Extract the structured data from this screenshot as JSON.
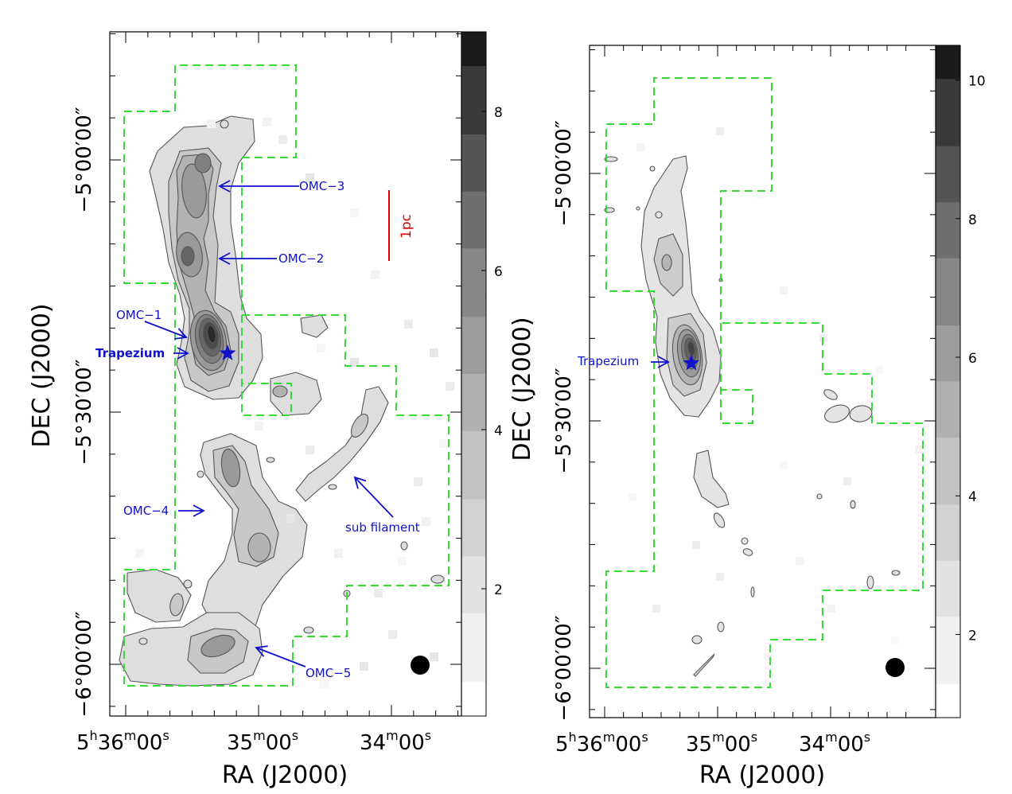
{
  "colors": {
    "grey_ramp": [
      "#ffffff",
      "#f0f0f0",
      "#e2e2e2",
      "#d2d2d2",
      "#c2c2c2",
      "#b0b0b0",
      "#9c9c9c",
      "#878787",
      "#6f6f6f",
      "#555555",
      "#3a3a3a",
      "#1a1a1a"
    ],
    "contour": "#555555",
    "survey_boundary": "#33dd33",
    "annotation": "#1111cc",
    "scale_bar": "#dd0000",
    "beam": "#000000"
  },
  "chart_data": [
    {
      "type": "heatmap",
      "panel": "left",
      "xlabel": "RA (J2000)",
      "ylabel": "DEC (J2000)",
      "x_ticks": [
        {
          "ra_s": 0,
          "label_h": "5",
          "label_m": "36",
          "label_s": "00",
          "show_hours": true
        },
        {
          "ra_s": -60,
          "label_m": "35",
          "label_s": "00",
          "show_hours": false
        },
        {
          "ra_s": -120,
          "label_m": "34",
          "label_s": "00",
          "show_hours": false
        }
      ],
      "y_ticks": [
        {
          "dec_min": 0,
          "label": "−5°00′00″"
        },
        {
          "dec_min": -30,
          "label": "−5°30′00″"
        },
        {
          "dec_min": -60,
          "label": "−6°00′00″"
        }
      ],
      "colorbar": {
        "ticks": [
          2,
          4,
          6,
          8
        ],
        "range": [
          0.4,
          9.0
        ]
      },
      "annotations": [
        {
          "label": "OMC−3",
          "text_ra": -99,
          "text_dec": -3,
          "tip_ra": -59,
          "tip_dec": -3
        },
        {
          "label": "OMC−2",
          "text_ra": -91,
          "text_dec": -11.5,
          "tip_ra": -59,
          "tip_dec": -11.5
        },
        {
          "label": "OMC−1",
          "text_ra": -44,
          "text_dec": -18.8,
          "tip_ra": -54,
          "tip_dec": -20.7
        },
        {
          "label": "Trapezium",
          "text_ra": -28,
          "text_dec": -22.9,
          "tip_ra": -54,
          "tip_dec": -22.9
        },
        {
          "label": "OMC−4",
          "text_ra": -25,
          "text_dec": -41.2,
          "tip_ra": -41,
          "tip_dec": -41.2
        },
        {
          "label": "sub filament",
          "text_ra": -126,
          "text_dec": -43,
          "tip_ra": -114,
          "tip_dec": -37.4
        },
        {
          "label": "OMC−5",
          "text_ra": -113,
          "text_dec": -60.8,
          "tip_ra": -65,
          "tip_dec": -58.5
        }
      ],
      "trapezium": {
        "ra": -46.0,
        "dec": -23.0
      },
      "scale_bar": {
        "label": "1pc"
      },
      "beam_position": "bottom-right"
    },
    {
      "type": "heatmap",
      "panel": "right",
      "xlabel": "RA (J2000)",
      "ylabel": "DEC (J2000)",
      "x_ticks": [
        {
          "ra_s": 0,
          "label_h": "5",
          "label_m": "36",
          "label_s": "00",
          "show_hours": true
        },
        {
          "ra_s": -60,
          "label_m": "35",
          "label_s": "00",
          "show_hours": false
        },
        {
          "ra_s": -120,
          "label_m": "34",
          "label_s": "00",
          "show_hours": false
        }
      ],
      "y_ticks": [
        {
          "dec_min": 0,
          "label": "−5°00′00″"
        },
        {
          "dec_min": -30,
          "label": "−5°30′00″"
        },
        {
          "dec_min": -60,
          "label": "−6°00′00″"
        }
      ],
      "colorbar": {
        "ticks": [
          2,
          4,
          6,
          8,
          10
        ],
        "range": [
          0.8,
          10.5
        ]
      },
      "annotations": [
        {
          "label": "Trapezium",
          "text_ra": -3,
          "text_dec": -22.9,
          "tip_ra": -39,
          "tip_dec": -22.9
        }
      ],
      "trapezium": {
        "ra": -46.0,
        "dec": -23.0
      },
      "beam_position": "bottom-right"
    }
  ]
}
